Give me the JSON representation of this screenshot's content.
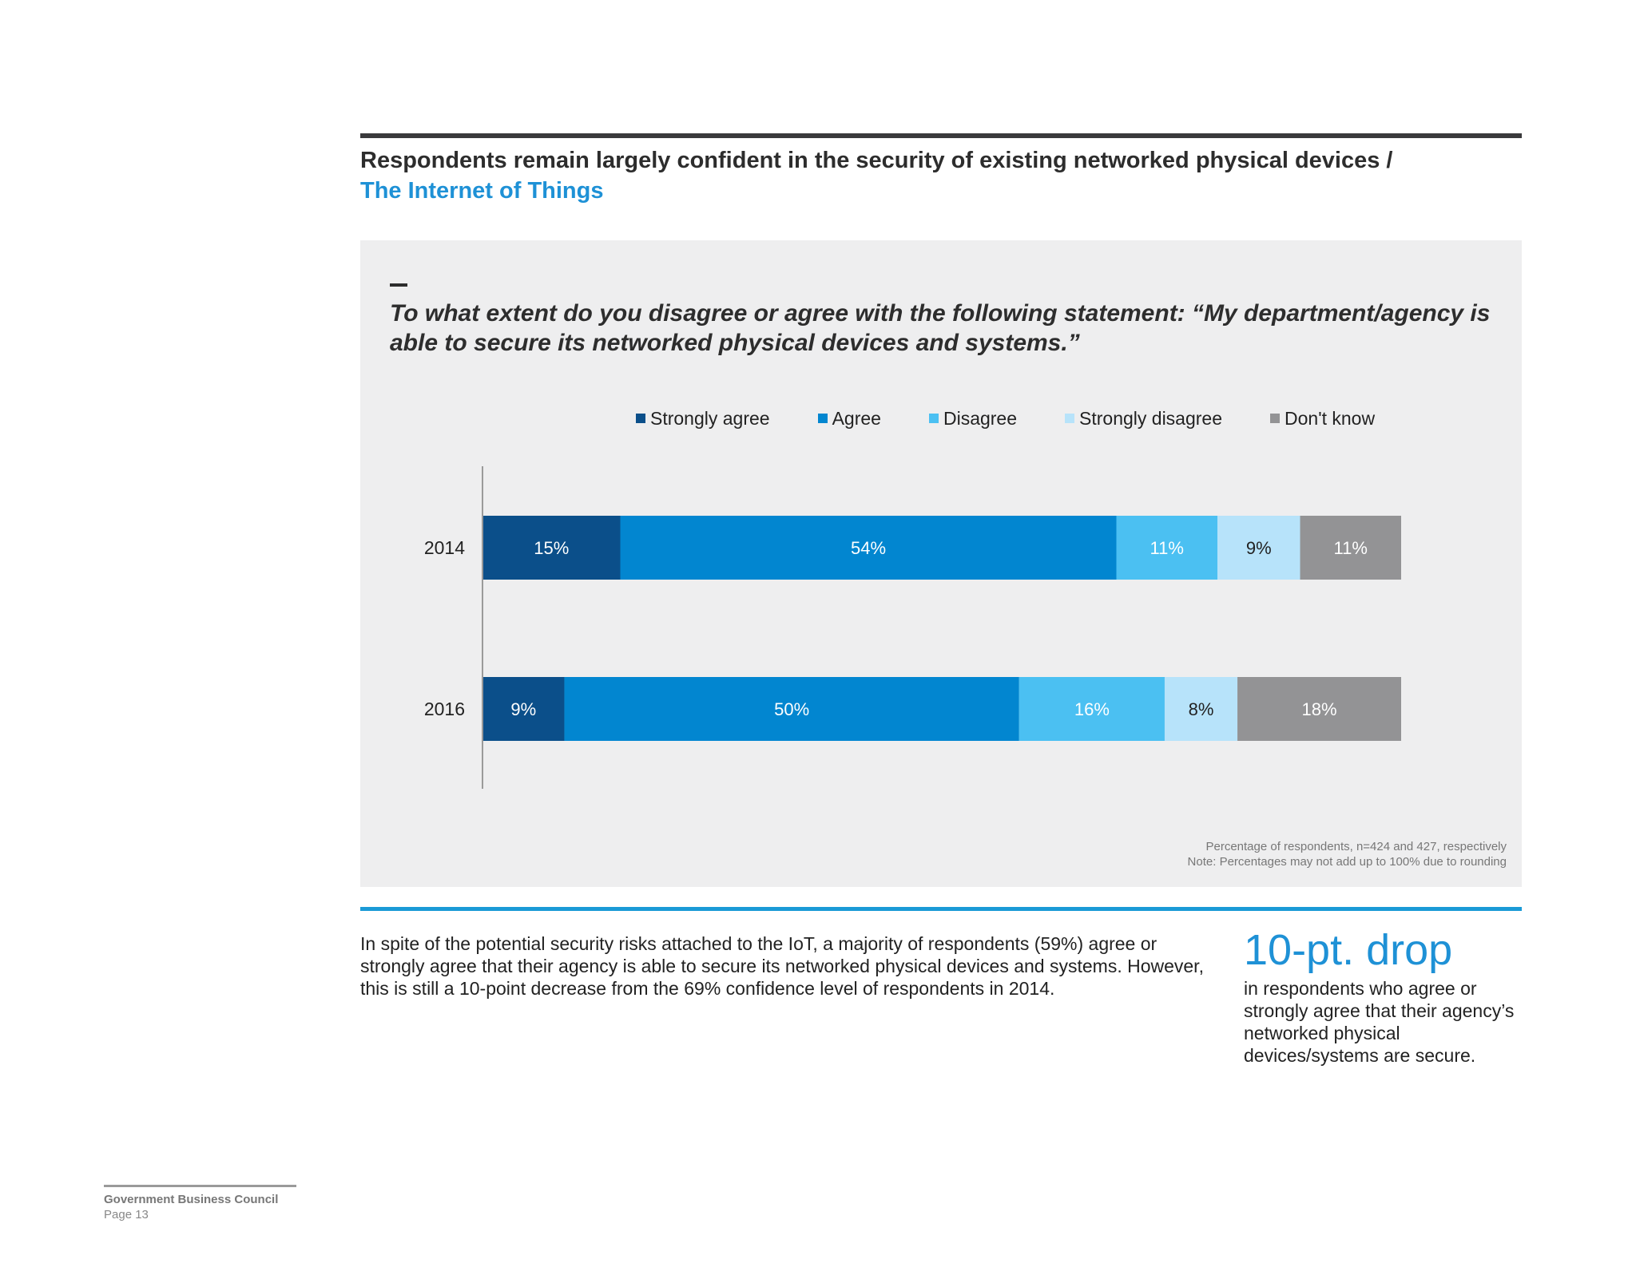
{
  "header": {
    "title_line1": "Respondents remain largely confident in the security of existing networked physical devices /",
    "title_line2": "The Internet of Things"
  },
  "question": "To what extent do you disagree or agree with the following statement: “My department/agency is able to secure its networked physical devices and systems.”",
  "chart_data": {
    "type": "bar",
    "orientation": "horizontal",
    "stacked": true,
    "categories": [
      "2014",
      "2016"
    ],
    "series": [
      {
        "name": "Strongly agree",
        "color": "#0b4f8a",
        "values": [
          15,
          9
        ],
        "labels": [
          "15%",
          "9%"
        ],
        "label_color": "#ffffff"
      },
      {
        "name": "Agree",
        "color": "#0286d0",
        "values": [
          54,
          50
        ],
        "labels": [
          "54%",
          "50%"
        ],
        "label_color": "#ffffff"
      },
      {
        "name": "Disagree",
        "color": "#4bc0f2",
        "values": [
          11,
          16
        ],
        "labels": [
          "11%",
          "16%"
        ],
        "label_color": "#ffffff"
      },
      {
        "name": "Strongly disagree",
        "color": "#b7e3fa",
        "values": [
          9,
          8
        ],
        "labels": [
          "9%",
          "8%"
        ],
        "label_color": "#222222"
      },
      {
        "name": "Don't know",
        "color": "#939395",
        "values": [
          11,
          18
        ],
        "labels": [
          "11%",
          "18%"
        ],
        "label_color": "#ffffff"
      }
    ],
    "legend_position": "top",
    "grid": false
  },
  "footnote": {
    "line1": "Percentage of respondents, n=424 and 427, respectively",
    "line2": "Note: Percentages may not add up to 100% due to rounding"
  },
  "body_text": "In spite of the potential security risks attached to the IoT, a majority of respondents (59%) agree or strongly agree that their agency is able to secure its networked physical devices and systems. However, this is still a 10-point decrease from the 69% confidence level of respondents in 2014.",
  "callout": {
    "big": "10-pt. drop",
    "text": "in respondents who agree or strongly agree that their agency’s networked physical devices/systems are secure."
  },
  "footer": {
    "org": "Government Business Council",
    "page": "Page 13"
  }
}
